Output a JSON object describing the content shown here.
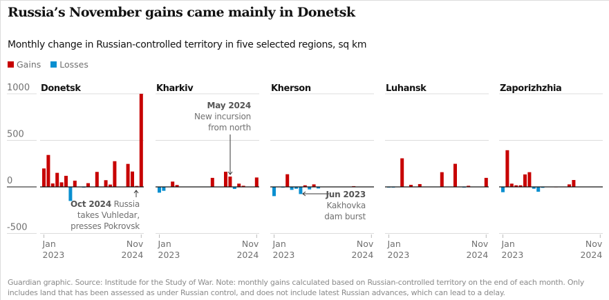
{
  "header": {
    "title": "Russia’s November gains came mainly in Donetsk",
    "subtitle": "Monthly change in Russian-controlled territory in five selected regions, sq km"
  },
  "legend": [
    {
      "label": "Gains",
      "color": "#c70000"
    },
    {
      "label": "Losses",
      "color": "#0a8fd0"
    }
  ],
  "chart_data": {
    "type": "bar",
    "layout": "small-multiples",
    "ylim": [
      -500,
      1000
    ],
    "yticks": [
      "1000",
      "500",
      "0",
      "-500"
    ],
    "ytick_values": [
      1000,
      500,
      0,
      -500
    ],
    "xtick_labels": [
      [
        "Jan",
        "2023"
      ],
      [
        "Nov",
        "2024"
      ]
    ],
    "months": [
      "Jan 2023",
      "Feb 2023",
      "Mar 2023",
      "Apr 2023",
      "May 2023",
      "Jun 2023",
      "Jul 2023",
      "Aug 2023",
      "Sep 2023",
      "Oct 2023",
      "Nov 2023",
      "Dec 2023",
      "Jan 2024",
      "Feb 2024",
      "Mar 2024",
      "Apr 2024",
      "May 2024",
      "Jun 2024",
      "Jul 2024",
      "Aug 2024",
      "Sep 2024",
      "Oct 2024",
      "Nov 2024"
    ],
    "grid": true,
    "colors": {
      "gain": "#c70000",
      "loss": "#0a8fd0"
    },
    "panels": [
      {
        "name": "Donetsk",
        "values": [
          198,
          343,
          37,
          151,
          49,
          119,
          -151,
          67,
          0,
          -7,
          40,
          0,
          161,
          0,
          72,
          25,
          276,
          0,
          0,
          247,
          165,
          10,
          1000
        ]
      },
      {
        "name": "Kharkiv",
        "values": [
          -62,
          -42,
          0,
          57,
          20,
          0,
          0,
          0,
          0,
          0,
          0,
          0,
          97,
          0,
          0,
          163,
          111,
          -22,
          35,
          12,
          0,
          0,
          101
        ]
      },
      {
        "name": "Kherson",
        "values": [
          -99,
          0,
          -3,
          136,
          -32,
          -20,
          -77,
          17,
          -27,
          27,
          -17,
          0,
          0,
          0,
          0,
          0,
          0,
          0,
          8,
          0,
          0,
          0,
          0
        ]
      },
      {
        "name": "Luhansk",
        "values": [
          -3,
          -6,
          0,
          307,
          0,
          22,
          0,
          30,
          0,
          0,
          0,
          0,
          158,
          0,
          0,
          248,
          0,
          -3,
          12,
          0,
          0,
          0,
          97
        ]
      },
      {
        "name": "Zaporizhzhia",
        "values": [
          -57,
          394,
          35,
          17,
          17,
          134,
          158,
          -20,
          -52,
          -10,
          0,
          0,
          3,
          0,
          0,
          27,
          74,
          0,
          0,
          0,
          0,
          0,
          0
        ]
      }
    ],
    "annotations": [
      {
        "panel": "Donetsk",
        "date": "Oct 2024",
        "text": "Russia",
        "line2": "takes Vuhledar,",
        "line3": "presses Pokrovsk"
      },
      {
        "panel": "Kharkiv",
        "date": "May 2024",
        "text": "New incursion",
        "line2": "from north"
      },
      {
        "panel": "Kherson",
        "date": "Jun 2023",
        "text": "Kakhovka",
        "line2": "dam burst"
      }
    ]
  },
  "footer": {
    "note": "Guardian graphic. Source: Institude for the Study of War. Note: monthly gains calculated based on Russian-controlled territory on the end of each month. Only includes land that has been assessed as under Russian control, and does not include latest Russian advances, which can lead to a delay."
  }
}
